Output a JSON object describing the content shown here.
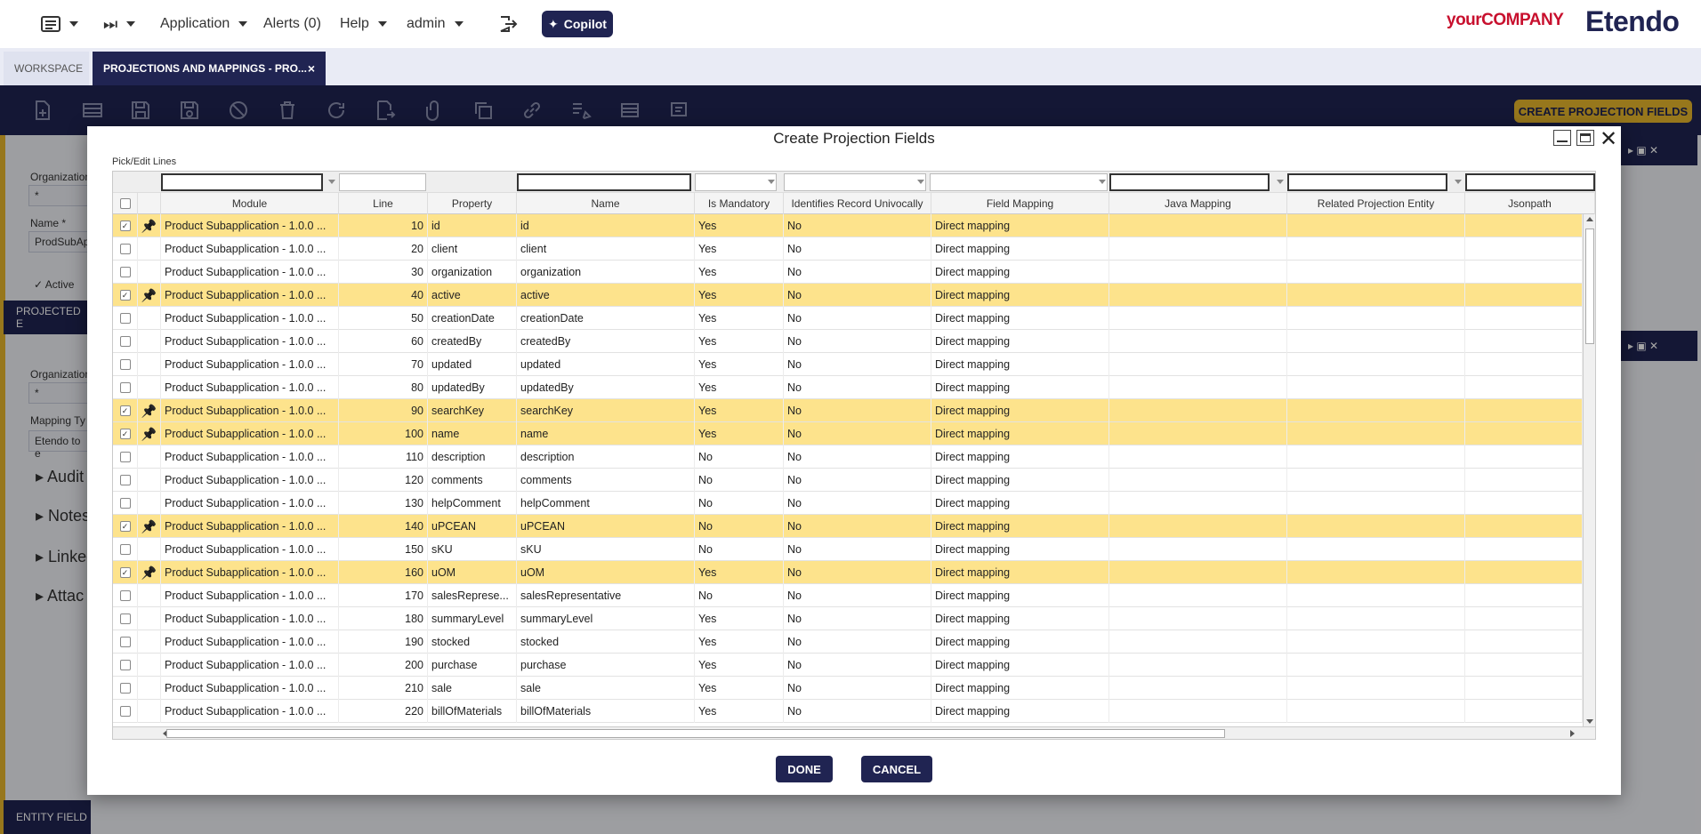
{
  "topbar": {
    "application": "Application",
    "alerts": "Alerts (0)",
    "help": "Help",
    "user": "admin",
    "copilot": "Copilot",
    "brand_your": "yourCOMPANY",
    "brand_etendo": "Etendo"
  },
  "tabs": {
    "workspace": "WORKSPACE",
    "active": "PROJECTIONS AND MAPPINGS - PRO...",
    "close": "×"
  },
  "toolbar": {
    "create_projection_fields": "CREATE PROJECTION FIELDS"
  },
  "background": {
    "organization_label": "Organization",
    "organization_value": "*",
    "name_label": "Name *",
    "name_value": "ProdSubAp",
    "active_label": "Active",
    "projected_bar": "PROJECTED E",
    "organization2_label": "Organization",
    "organization2_value": "*",
    "mapping_type_label": "Mapping Ty",
    "mapping_type_value": "Etendo to e",
    "sections": [
      "Audit",
      "Notes",
      "Linked",
      "Attac"
    ],
    "entity_field_bar": "ENTITY FIELD"
  },
  "modal": {
    "title": "Create Projection Fields",
    "pick_edit_lines": "Pick/Edit Lines",
    "done": "DONE",
    "cancel": "CANCEL",
    "close": "✕"
  },
  "grid": {
    "columns": [
      "Module",
      "Line",
      "Property",
      "Name",
      "Is Mandatory",
      "Identifies Record Univocally",
      "Field Mapping",
      "Java Mapping",
      "Related Projection Entity",
      "Jsonpath"
    ],
    "rows": [
      {
        "selected": true,
        "module": "Product Subapplication - 1.0.0 ...",
        "line": "10",
        "property": "id",
        "name": "id",
        "mandatory": "Yes",
        "identifies": "No",
        "mapping": "Direct mapping"
      },
      {
        "selected": false,
        "module": "Product Subapplication - 1.0.0 ...",
        "line": "20",
        "property": "client",
        "name": "client",
        "mandatory": "Yes",
        "identifies": "No",
        "mapping": "Direct mapping"
      },
      {
        "selected": false,
        "module": "Product Subapplication - 1.0.0 ...",
        "line": "30",
        "property": "organization",
        "name": "organization",
        "mandatory": "Yes",
        "identifies": "No",
        "mapping": "Direct mapping"
      },
      {
        "selected": true,
        "module": "Product Subapplication - 1.0.0 ...",
        "line": "40",
        "property": "active",
        "name": "active",
        "mandatory": "Yes",
        "identifies": "No",
        "mapping": "Direct mapping"
      },
      {
        "selected": false,
        "module": "Product Subapplication - 1.0.0 ...",
        "line": "50",
        "property": "creationDate",
        "name": "creationDate",
        "mandatory": "Yes",
        "identifies": "No",
        "mapping": "Direct mapping"
      },
      {
        "selected": false,
        "module": "Product Subapplication - 1.0.0 ...",
        "line": "60",
        "property": "createdBy",
        "name": "createdBy",
        "mandatory": "Yes",
        "identifies": "No",
        "mapping": "Direct mapping"
      },
      {
        "selected": false,
        "module": "Product Subapplication - 1.0.0 ...",
        "line": "70",
        "property": "updated",
        "name": "updated",
        "mandatory": "Yes",
        "identifies": "No",
        "mapping": "Direct mapping"
      },
      {
        "selected": false,
        "module": "Product Subapplication - 1.0.0 ...",
        "line": "80",
        "property": "updatedBy",
        "name": "updatedBy",
        "mandatory": "Yes",
        "identifies": "No",
        "mapping": "Direct mapping"
      },
      {
        "selected": true,
        "module": "Product Subapplication - 1.0.0 ...",
        "line": "90",
        "property": "searchKey",
        "name": "searchKey",
        "mandatory": "Yes",
        "identifies": "No",
        "mapping": "Direct mapping"
      },
      {
        "selected": true,
        "module": "Product Subapplication - 1.0.0 ...",
        "line": "100",
        "property": "name",
        "name": "name",
        "mandatory": "Yes",
        "identifies": "No",
        "mapping": "Direct mapping"
      },
      {
        "selected": false,
        "module": "Product Subapplication - 1.0.0 ...",
        "line": "110",
        "property": "description",
        "name": "description",
        "mandatory": "No",
        "identifies": "No",
        "mapping": "Direct mapping"
      },
      {
        "selected": false,
        "module": "Product Subapplication - 1.0.0 ...",
        "line": "120",
        "property": "comments",
        "name": "comments",
        "mandatory": "No",
        "identifies": "No",
        "mapping": "Direct mapping"
      },
      {
        "selected": false,
        "module": "Product Subapplication - 1.0.0 ...",
        "line": "130",
        "property": "helpComment",
        "name": "helpComment",
        "mandatory": "No",
        "identifies": "No",
        "mapping": "Direct mapping"
      },
      {
        "selected": true,
        "module": "Product Subapplication - 1.0.0 ...",
        "line": "140",
        "property": "uPCEAN",
        "name": "uPCEAN",
        "mandatory": "No",
        "identifies": "No",
        "mapping": "Direct mapping"
      },
      {
        "selected": false,
        "module": "Product Subapplication - 1.0.0 ...",
        "line": "150",
        "property": "sKU",
        "name": "sKU",
        "mandatory": "No",
        "identifies": "No",
        "mapping": "Direct mapping"
      },
      {
        "selected": true,
        "module": "Product Subapplication - 1.0.0 ...",
        "line": "160",
        "property": "uOM",
        "name": "uOM",
        "mandatory": "Yes",
        "identifies": "No",
        "mapping": "Direct mapping"
      },
      {
        "selected": false,
        "module": "Product Subapplication - 1.0.0 ...",
        "line": "170",
        "property": "salesReprese...",
        "name": "salesRepresentative",
        "mandatory": "No",
        "identifies": "No",
        "mapping": "Direct mapping"
      },
      {
        "selected": false,
        "module": "Product Subapplication - 1.0.0 ...",
        "line": "180",
        "property": "summaryLevel",
        "name": "summaryLevel",
        "mandatory": "Yes",
        "identifies": "No",
        "mapping": "Direct mapping"
      },
      {
        "selected": false,
        "module": "Product Subapplication - 1.0.0 ...",
        "line": "190",
        "property": "stocked",
        "name": "stocked",
        "mandatory": "Yes",
        "identifies": "No",
        "mapping": "Direct mapping"
      },
      {
        "selected": false,
        "module": "Product Subapplication - 1.0.0 ...",
        "line": "200",
        "property": "purchase",
        "name": "purchase",
        "mandatory": "Yes",
        "identifies": "No",
        "mapping": "Direct mapping"
      },
      {
        "selected": false,
        "module": "Product Subapplication - 1.0.0 ...",
        "line": "210",
        "property": "sale",
        "name": "sale",
        "mandatory": "Yes",
        "identifies": "No",
        "mapping": "Direct mapping"
      },
      {
        "selected": false,
        "module": "Product Subapplication - 1.0.0 ...",
        "line": "220",
        "property": "billOfMaterials",
        "name": "billOfMaterials",
        "mandatory": "Yes",
        "identifies": "No",
        "mapping": "Direct mapping"
      }
    ]
  },
  "colors": {
    "navy": "#202452",
    "accent_yellow": "#e8b72c",
    "selected_row": "#fde38c",
    "brand_red": "#c8102e"
  }
}
